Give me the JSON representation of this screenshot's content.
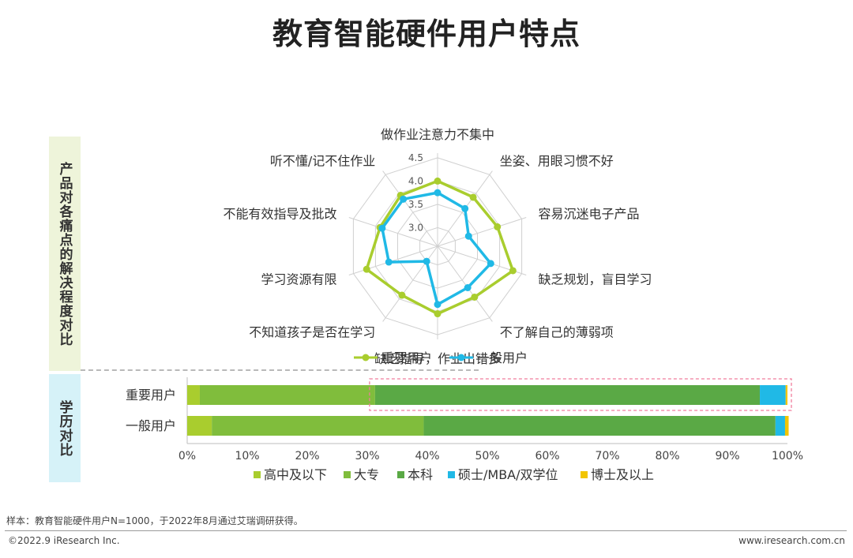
{
  "title": "教育智能硬件用户特点",
  "side_labels": {
    "top": "产品对各痛点的解决程度对比",
    "bottom": "学历对比"
  },
  "colors": {
    "important": "#a9cd2e",
    "general": "#20b9e6",
    "seg": [
      "#a9cd2e",
      "#80bd3c",
      "#5aa945",
      "#20b9e6",
      "#f2c500"
    ]
  },
  "chart_data": [
    {
      "type": "radar",
      "axes": [
        "做作业注意力不集中",
        "坐姿、用眼习惯不好",
        "容易沉迷电子产品",
        "缺乏规划，盲目学习",
        "不了解自己的薄弱项",
        "缺乏指导，作业出错多",
        "不知道孩子是否在学习",
        "学习资源有限",
        "不能有效指导及批改",
        "听不懂/记不住作业"
      ],
      "ticks": [
        "3.0",
        "3.5",
        "4.0",
        "4.5"
      ],
      "tick_values": [
        3.0,
        3.5,
        4.0,
        4.5
      ],
      "range": [
        2.6,
        4.6
      ],
      "series": [
        {
          "name": "重要用户",
          "values": [
            4.0,
            3.9,
            3.95,
            4.3,
            3.95,
            4.05,
            3.9,
            4.2,
            3.9,
            3.95
          ]
        },
        {
          "name": "一般用户",
          "values": [
            3.75,
            3.6,
            3.3,
            3.8,
            3.7,
            3.85,
            3.0,
            3.7,
            3.85,
            3.85
          ]
        }
      ]
    },
    {
      "type": "stacked-bar-horizontal",
      "categories": [
        "重要用户",
        "一般用户"
      ],
      "xlim": [
        0,
        100
      ],
      "xticks": [
        "0%",
        "10%",
        "20%",
        "30%",
        "40%",
        "50%",
        "60%",
        "70%",
        "80%",
        "90%",
        "100%"
      ],
      "series": [
        {
          "name": "高中及以下",
          "values": [
            2.1,
            4.1
          ]
        },
        {
          "name": "大专",
          "values": [
            29.2,
            35.3
          ]
        },
        {
          "name": "本科",
          "values": [
            64.1,
            58.6
          ]
        },
        {
          "name": "硕士/MBA/双学位",
          "values": [
            4.3,
            1.6
          ]
        },
        {
          "name": "博士及以上",
          "values": [
            0.3,
            0.6
          ]
        }
      ]
    }
  ],
  "footer": {
    "note": "样本：教育智能硬件用户N=1000，于2022年8月通过艾瑞调研获得。",
    "left": "©2022.9 iResearch Inc.",
    "right": "www.iresearch.com.cn"
  }
}
